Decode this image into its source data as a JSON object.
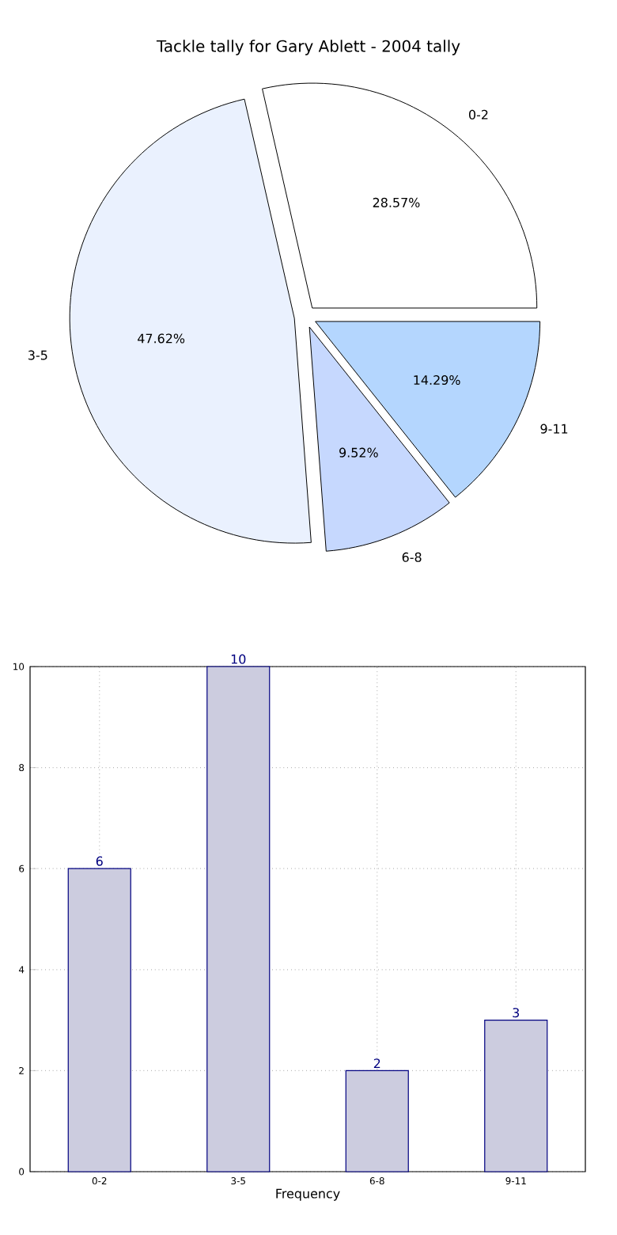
{
  "chart_data": [
    {
      "type": "pie",
      "title": "Tackle tally for Gary Ablett - 2004 tally",
      "categories": [
        "0-2",
        "3-5",
        "6-8",
        "9-11"
      ],
      "values": [
        28.57,
        47.62,
        9.52,
        14.29
      ],
      "colors": [
        "#ffffff",
        "#eaf1fe",
        "#c6d8fe",
        "#b4d6fe"
      ],
      "value_labels": [
        "28.57%",
        "47.62%",
        "9.52%",
        "14.29%"
      ]
    },
    {
      "type": "bar",
      "xlabel": "Frequency",
      "categories": [
        "0-2",
        "3-5",
        "6-8",
        "9-11"
      ],
      "values": [
        6,
        10,
        2,
        3
      ],
      "color": "#ccccdf",
      "ylim": [
        0,
        10
      ],
      "yticks": [
        0,
        2,
        4,
        6,
        8,
        10
      ],
      "grid": true,
      "data_labels": true
    }
  ]
}
